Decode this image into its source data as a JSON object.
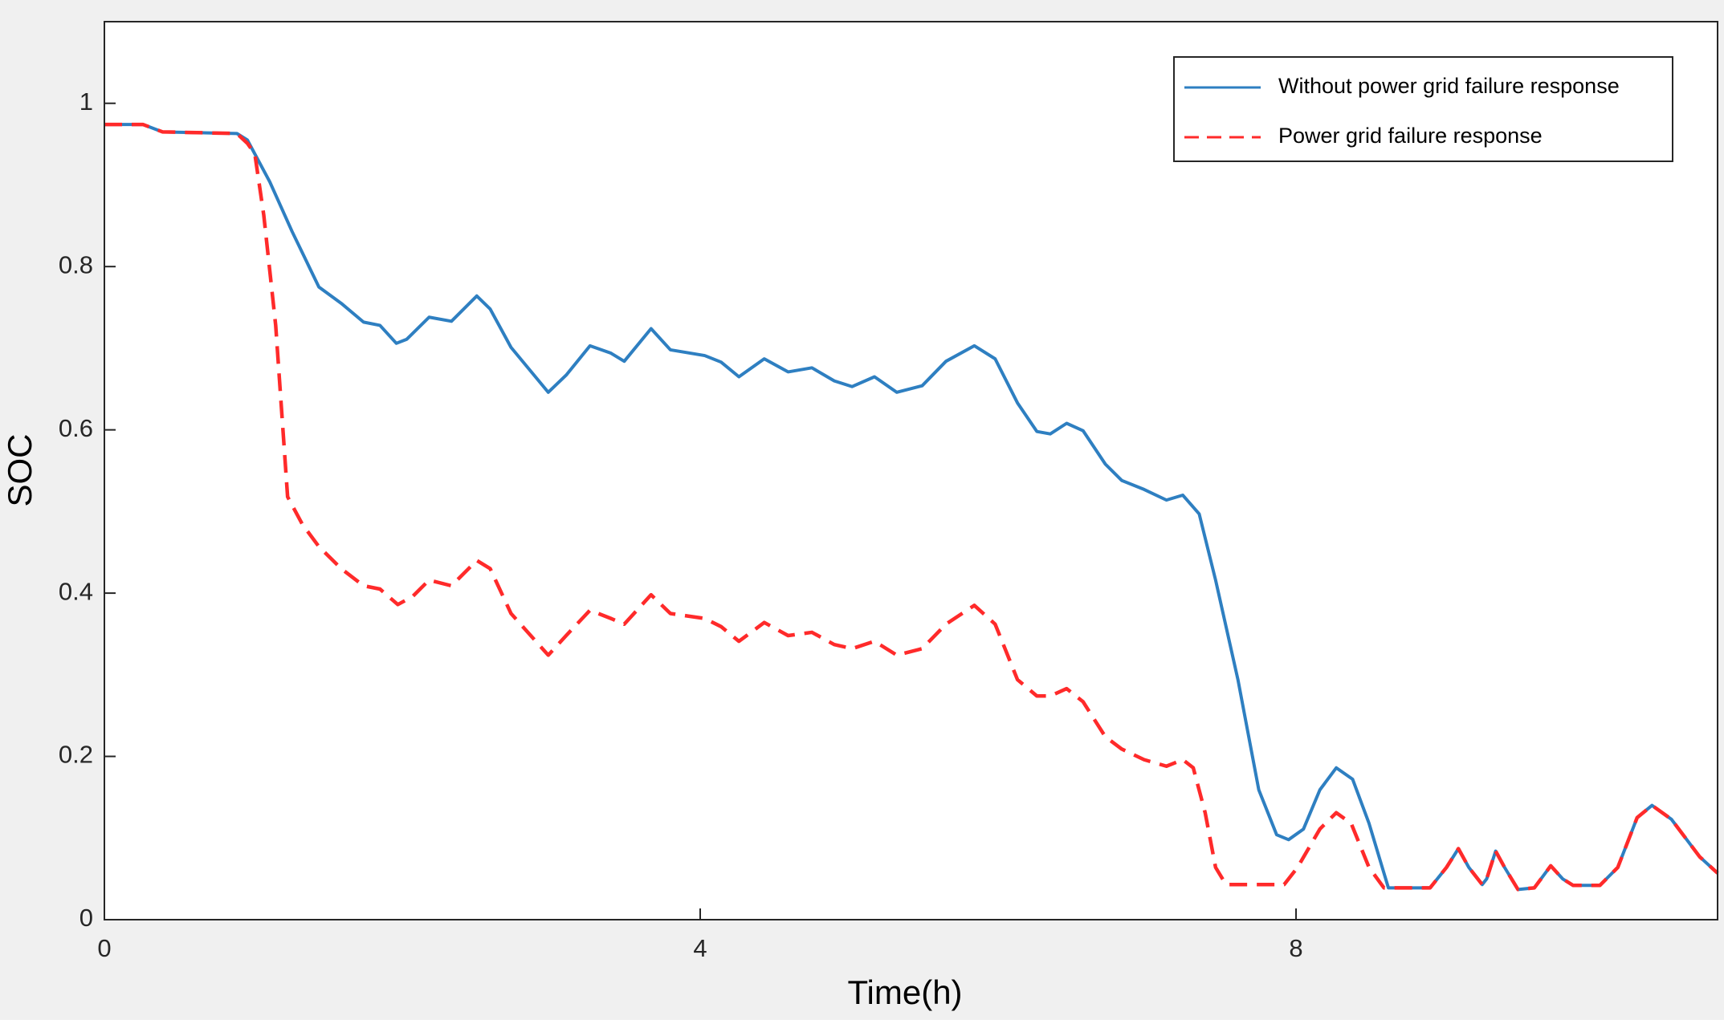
{
  "chart_data": {
    "type": "line",
    "x_label": "Time(h)",
    "y_label": "SOC",
    "xlim": [
      0,
      10.83
    ],
    "ylim": [
      0,
      1.1
    ],
    "xticks": [
      0,
      4,
      8
    ],
    "yticks": [
      0,
      0.2,
      0.4,
      0.6,
      0.8,
      1
    ],
    "grid": false,
    "legend": "upper right",
    "series": [
      {
        "name": "Without power grid failure response",
        "color": "#2e7fc1",
        "line_style": "solid",
        "x": [
          0,
          0.26,
          0.39,
          0.89,
          0.96,
          1.11,
          1.26,
          1.44,
          1.59,
          1.74,
          1.85,
          1.96,
          2.03,
          2.18,
          2.33,
          2.5,
          2.59,
          2.73,
          2.98,
          3.1,
          3.26,
          3.4,
          3.49,
          3.67,
          3.8,
          4.03,
          4.14,
          4.26,
          4.43,
          4.59,
          4.75,
          4.9,
          5.02,
          5.17,
          5.32,
          5.49,
          5.65,
          5.84,
          5.98,
          6.13,
          6.26,
          6.35,
          6.46,
          6.57,
          6.72,
          6.83,
          6.98,
          7.13,
          7.24,
          7.35,
          7.46,
          7.61,
          7.75,
          7.87,
          7.95,
          8.05,
          8.16,
          8.27,
          8.38,
          8.49,
          8.62,
          8.9,
          9.01,
          9.09,
          9.16,
          9.25,
          9.28,
          9.34,
          9.4,
          9.49,
          9.6,
          9.71,
          9.79,
          9.86,
          10.04,
          10.16,
          10.29,
          10.39,
          10.52,
          10.71,
          10.83
        ],
        "values": [
          0.974,
          0.974,
          0.965,
          0.963,
          0.955,
          0.904,
          0.843,
          0.775,
          0.755,
          0.732,
          0.728,
          0.706,
          0.711,
          0.738,
          0.733,
          0.764,
          0.748,
          0.701,
          0.646,
          0.667,
          0.703,
          0.694,
          0.684,
          0.724,
          0.698,
          0.691,
          0.683,
          0.665,
          0.687,
          0.671,
          0.676,
          0.66,
          0.653,
          0.665,
          0.646,
          0.654,
          0.684,
          0.703,
          0.687,
          0.633,
          0.598,
          0.595,
          0.608,
          0.599,
          0.558,
          0.538,
          0.527,
          0.514,
          0.52,
          0.497,
          0.416,
          0.294,
          0.159,
          0.104,
          0.098,
          0.111,
          0.159,
          0.186,
          0.172,
          0.118,
          0.039,
          0.039,
          0.064,
          0.087,
          0.064,
          0.043,
          0.05,
          0.084,
          0.064,
          0.037,
          0.039,
          0.066,
          0.05,
          0.042,
          0.042,
          0.064,
          0.125,
          0.14,
          0.123,
          0.077,
          0.057
        ]
      },
      {
        "name": "Power grid failure response",
        "color": "#ff2a2a",
        "line_style": "dashed",
        "x": [
          0,
          0.26,
          0.39,
          0.89,
          0.96,
          1.01,
          1.07,
          1.15,
          1.23,
          1.33,
          1.44,
          1.59,
          1.74,
          1.85,
          1.97,
          2.07,
          2.18,
          2.33,
          2.5,
          2.59,
          2.73,
          2.98,
          3.1,
          3.26,
          3.4,
          3.49,
          3.67,
          3.8,
          4.03,
          4.14,
          4.26,
          4.43,
          4.59,
          4.75,
          4.9,
          5.02,
          5.17,
          5.32,
          5.49,
          5.65,
          5.84,
          5.98,
          6.13,
          6.26,
          6.35,
          6.46,
          6.57,
          6.72,
          6.83,
          6.98,
          7.13,
          7.24,
          7.31,
          7.39,
          7.46,
          7.53,
          7.92,
          8.01,
          8.16,
          8.27,
          8.37,
          8.49,
          8.59,
          8.9,
          9.01,
          9.09,
          9.16,
          9.25,
          9.28,
          9.34,
          9.4,
          9.49,
          9.6,
          9.71,
          9.79,
          9.86,
          10.04,
          10.16,
          10.29,
          10.39,
          10.52,
          10.71,
          10.83
        ],
        "values": [
          0.974,
          0.974,
          0.965,
          0.963,
          0.951,
          0.938,
          0.863,
          0.728,
          0.518,
          0.484,
          0.457,
          0.43,
          0.409,
          0.405,
          0.386,
          0.396,
          0.416,
          0.409,
          0.44,
          0.43,
          0.375,
          0.324,
          0.348,
          0.379,
          0.369,
          0.362,
          0.398,
          0.375,
          0.369,
          0.359,
          0.341,
          0.364,
          0.348,
          0.352,
          0.337,
          0.332,
          0.341,
          0.324,
          0.332,
          0.362,
          0.385,
          0.362,
          0.294,
          0.274,
          0.274,
          0.283,
          0.267,
          0.224,
          0.209,
          0.196,
          0.188,
          0.196,
          0.186,
          0.131,
          0.064,
          0.043,
          0.043,
          0.064,
          0.111,
          0.131,
          0.118,
          0.064,
          0.039,
          0.039,
          0.064,
          0.087,
          0.064,
          0.043,
          0.05,
          0.084,
          0.064,
          0.037,
          0.039,
          0.066,
          0.05,
          0.042,
          0.042,
          0.064,
          0.125,
          0.14,
          0.123,
          0.077,
          0.057
        ]
      }
    ]
  }
}
